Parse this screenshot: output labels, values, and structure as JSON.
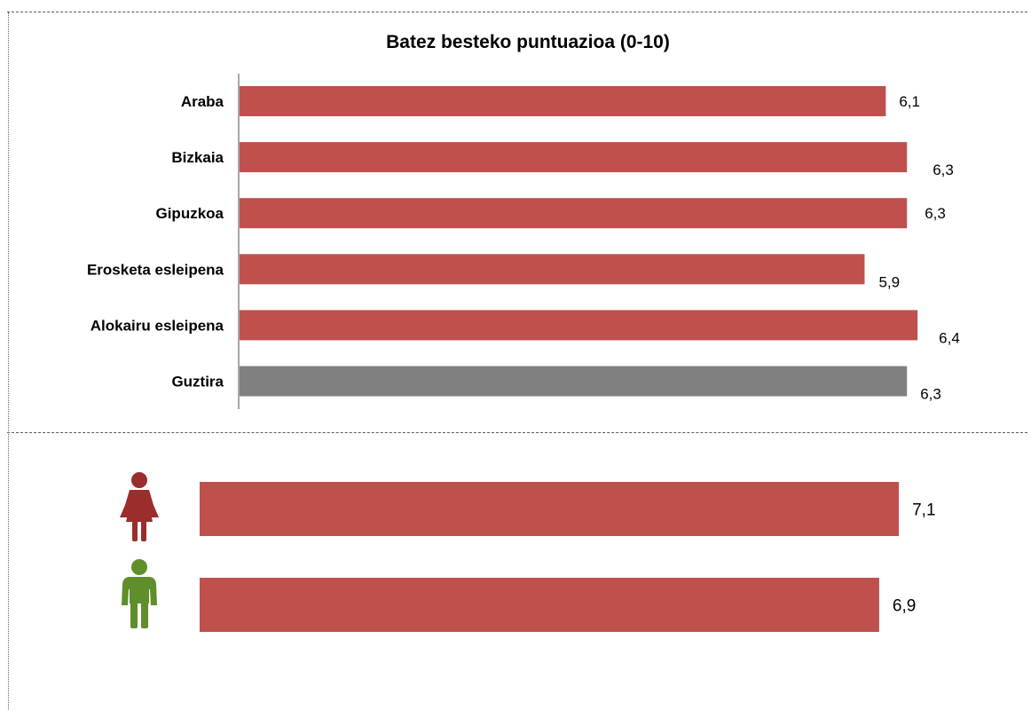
{
  "chart_data": [
    {
      "type": "bar",
      "orientation": "horizontal",
      "title": "Batez besteko puntuazioa (0-10)",
      "categories": [
        "Araba",
        "Bizkaia",
        "Gipuzkoa",
        "Erosketa esleipena",
        "Alokairu esleipena",
        "Guztira"
      ],
      "values": [
        6.1,
        6.3,
        6.3,
        5.9,
        6.4,
        6.3
      ],
      "value_labels": [
        "6,1",
        "6,3",
        "6,3",
        "5,9",
        "6,4",
        "6,3"
      ],
      "colors": [
        "#c0504d",
        "#c0504d",
        "#c0504d",
        "#c0504d",
        "#c0504d",
        "#808080"
      ],
      "xlim": [
        0,
        10
      ],
      "grid": false
    },
    {
      "type": "bar",
      "orientation": "horizontal",
      "categories": [
        "female-icon",
        "male-icon"
      ],
      "values": [
        7.1,
        6.9
      ],
      "value_labels": [
        "7,1",
        "6,9"
      ],
      "colors": [
        "#c0504d",
        "#c0504d"
      ],
      "icon_colors": [
        "#9b2d2d",
        "#5f8f2a"
      ],
      "grid": false
    }
  ]
}
